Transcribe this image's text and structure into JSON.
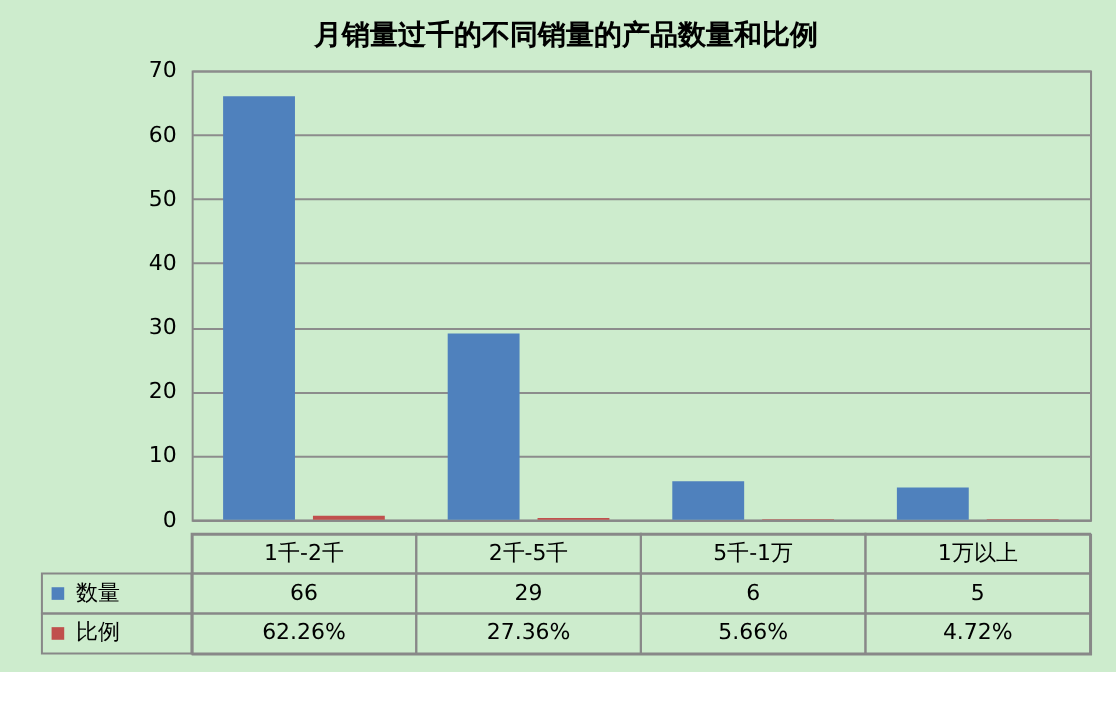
{
  "chart_data": {
    "type": "bar",
    "title": "月销量过千的不同销量的产品数量和比例",
    "categories": [
      "1千-2千",
      "2千-5千",
      "5千-1万",
      "1万以上"
    ],
    "series": [
      {
        "name": "数量",
        "color": "#4f81bd",
        "values": [
          66,
          29,
          6,
          5
        ],
        "value_labels": [
          "66",
          "29",
          "6",
          "5"
        ]
      },
      {
        "name": "比例",
        "color": "#c0504d",
        "values": [
          0.6226,
          0.2736,
          0.0566,
          0.0472
        ],
        "value_labels": [
          "62.26%",
          "27.36%",
          "5.66%",
          "4.72%"
        ]
      }
    ],
    "ylim": [
      0,
      70
    ],
    "yticks": [
      0,
      10,
      20,
      30,
      40,
      50,
      60,
      70
    ],
    "grid": "y",
    "legend": "bottom left"
  }
}
